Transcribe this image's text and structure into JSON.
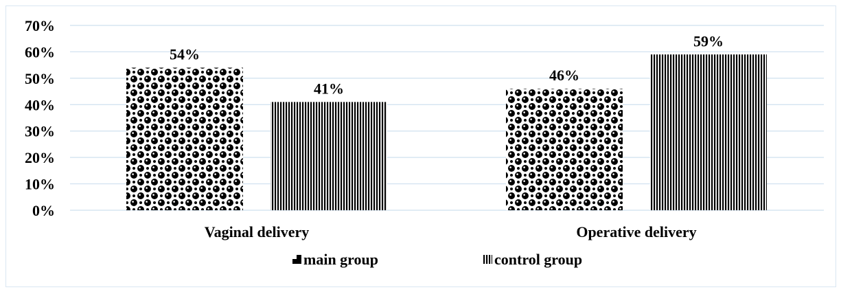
{
  "chart_data": {
    "type": "bar",
    "categories": [
      "Vaginal delivery",
      "Operative delivery"
    ],
    "series": [
      {
        "name": "main group",
        "values": [
          54,
          46
        ],
        "data_labels": [
          "54%",
          "46%"
        ],
        "pattern": "checker-dots",
        "color": "#000000"
      },
      {
        "name": "control group",
        "values": [
          41,
          59
        ],
        "data_labels": [
          "41%",
          "59%"
        ],
        "pattern": "vertical-stripes",
        "color": "#000000"
      }
    ],
    "ylim": [
      0,
      70
    ],
    "yticks": [
      0,
      10,
      20,
      30,
      40,
      50,
      60,
      70
    ],
    "ytick_labels": [
      "0%",
      "10%",
      "20%",
      "30%",
      "40%",
      "50%",
      "60%",
      "70%"
    ],
    "grid": true,
    "grid_color": "#cfe0ef",
    "legend_position": "bottom",
    "title": "",
    "xlabel": "",
    "ylabel": ""
  }
}
